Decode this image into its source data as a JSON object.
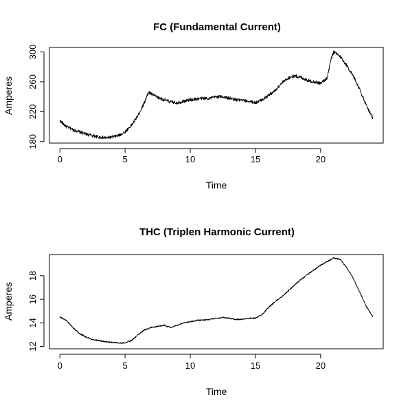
{
  "chart_data": [
    {
      "type": "line",
      "title": "FC (Fundamental Current)",
      "xlabel": "Time",
      "ylabel": "Amperes",
      "xlim": [
        -0.8,
        24.8
      ],
      "ylim": [
        178,
        306
      ],
      "x_axis_ticks": [
        0,
        5,
        10,
        15,
        20
      ],
      "y_axis_ticks": [
        180,
        220,
        260,
        300
      ],
      "x_tick_labels": [
        "0",
        "5",
        "10",
        "15",
        "20"
      ],
      "y_tick_labels": [
        "180",
        "220",
        "260",
        "300"
      ],
      "grid": false,
      "legend": "none",
      "series_color": "#000000",
      "noise": 2.2,
      "series": [
        {
          "x": [
            0,
            0.5,
            1,
            1.5,
            2,
            2.5,
            3,
            3.5,
            4,
            4.5,
            5,
            5.5,
            6,
            6.5,
            6.8,
            7,
            7.5,
            8,
            8.5,
            9,
            9.5,
            10,
            10.5,
            11,
            11.5,
            12,
            12.5,
            13,
            13.5,
            14,
            14.5,
            15,
            15.5,
            16,
            16.5,
            17,
            17.5,
            18,
            18.5,
            19,
            19.5,
            20,
            20.5,
            20.8,
            21,
            21.5,
            22,
            22.5,
            23,
            23.5,
            24
          ],
          "y": [
            208,
            200,
            196,
            193,
            190,
            188,
            186,
            185,
            186,
            188,
            193,
            202,
            215,
            233,
            246,
            244,
            239,
            236,
            233,
            232,
            234,
            236,
            237,
            238,
            238,
            240,
            240,
            238,
            236,
            235,
            234,
            232,
            236,
            242,
            248,
            258,
            265,
            268,
            266,
            262,
            260,
            258,
            265,
            290,
            300,
            294,
            282,
            268,
            250,
            228,
            212
          ]
        }
      ]
    },
    {
      "type": "line",
      "title": "THC (Triplen Harmonic Current)",
      "xlabel": "Time",
      "ylabel": "Amperes",
      "xlim": [
        -0.8,
        24.8
      ],
      "ylim": [
        11.8,
        19.8
      ],
      "x_axis_ticks": [
        0,
        5,
        10,
        15,
        20
      ],
      "y_axis_ticks": [
        12,
        14,
        16,
        18
      ],
      "x_tick_labels": [
        "0",
        "5",
        "10",
        "15",
        "20"
      ],
      "y_tick_labels": [
        "12",
        "14",
        "16",
        "18"
      ],
      "grid": false,
      "legend": "none",
      "series_color": "#000000",
      "noise": 0.05,
      "series": [
        {
          "x": [
            0,
            0.5,
            1,
            1.5,
            2,
            2.5,
            3,
            3.5,
            4,
            4.5,
            5,
            5.5,
            6,
            6.5,
            7,
            7.5,
            8,
            8.5,
            9,
            9.5,
            10,
            10.5,
            11,
            11.5,
            12,
            12.5,
            13,
            13.5,
            14,
            14.5,
            15,
            15.5,
            16,
            16.5,
            17,
            17.5,
            18,
            18.5,
            19,
            19.5,
            20,
            20.5,
            21,
            21.5,
            22,
            22.5,
            23,
            23.5,
            24
          ],
          "y": [
            14.5,
            14.2,
            13.6,
            13.1,
            12.8,
            12.6,
            12.5,
            12.4,
            12.35,
            12.3,
            12.3,
            12.5,
            13.0,
            13.4,
            13.6,
            13.7,
            13.8,
            13.6,
            13.8,
            14.0,
            14.1,
            14.2,
            14.25,
            14.3,
            14.4,
            14.45,
            14.4,
            14.3,
            14.3,
            14.4,
            14.4,
            14.7,
            15.3,
            15.8,
            16.2,
            16.7,
            17.2,
            17.7,
            18.1,
            18.5,
            18.9,
            19.2,
            19.5,
            19.4,
            18.7,
            17.8,
            16.6,
            15.4,
            14.5
          ]
        }
      ]
    }
  ]
}
